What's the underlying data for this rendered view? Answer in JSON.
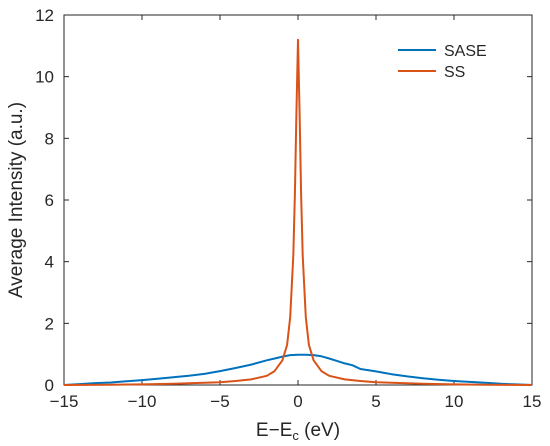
{
  "chart_data": {
    "type": "line",
    "xlabel_main": "E−E",
    "xlabel_sub": "c",
    "xlabel_unit": " (eV)",
    "ylabel": "Average Intensity (a.u.)",
    "xlim": [
      -15,
      15
    ],
    "ylim": [
      0,
      12
    ],
    "xticks": [
      -15,
      -10,
      -5,
      0,
      5,
      10,
      15
    ],
    "xtick_labels": [
      "−15",
      "−10",
      "−5",
      "0",
      "5",
      "10",
      "15"
    ],
    "yticks": [
      0,
      2,
      4,
      6,
      8,
      10,
      12
    ],
    "ytick_labels": [
      "0",
      "2",
      "4",
      "6",
      "8",
      "10",
      "12"
    ],
    "grid": false,
    "legend_position": "top-right",
    "series": [
      {
        "name": "SASE",
        "color": "#0072BD",
        "x": [
          -15,
          -14,
          -13,
          -12,
          -11,
          -10,
          -9,
          -8,
          -7,
          -6,
          -5,
          -4,
          -3,
          -2,
          -1.5,
          -1,
          -0.5,
          0,
          0.5,
          1,
          1.5,
          2,
          2.5,
          3,
          3.5,
          4,
          5,
          6,
          7,
          8,
          9,
          10,
          11,
          12,
          13,
          14,
          15
        ],
        "y": [
          0.0,
          0.03,
          0.06,
          0.08,
          0.12,
          0.16,
          0.2,
          0.25,
          0.3,
          0.36,
          0.45,
          0.55,
          0.66,
          0.8,
          0.86,
          0.92,
          0.97,
          0.98,
          0.98,
          0.97,
          0.93,
          0.86,
          0.78,
          0.7,
          0.64,
          0.52,
          0.44,
          0.35,
          0.28,
          0.22,
          0.17,
          0.13,
          0.1,
          0.07,
          0.04,
          0.02,
          0.0
        ]
      },
      {
        "name": "SS",
        "color": "#D95319",
        "x": [
          -15,
          -12,
          -10,
          -8,
          -6,
          -5,
          -4,
          -3,
          -2,
          -1.5,
          -1,
          -0.7,
          -0.5,
          -0.3,
          -0.2,
          -0.1,
          0,
          0.1,
          0.2,
          0.3,
          0.5,
          0.7,
          1,
          1.5,
          2,
          3,
          4,
          5,
          6,
          8,
          10,
          12,
          15
        ],
        "y": [
          0.0,
          0.01,
          0.02,
          0.04,
          0.07,
          0.09,
          0.13,
          0.18,
          0.3,
          0.45,
          0.8,
          1.3,
          2.2,
          4.2,
          6.2,
          8.8,
          11.2,
          8.8,
          6.2,
          4.2,
          2.2,
          1.3,
          0.8,
          0.45,
          0.3,
          0.18,
          0.13,
          0.09,
          0.07,
          0.04,
          0.02,
          0.01,
          0.0
        ]
      }
    ]
  }
}
